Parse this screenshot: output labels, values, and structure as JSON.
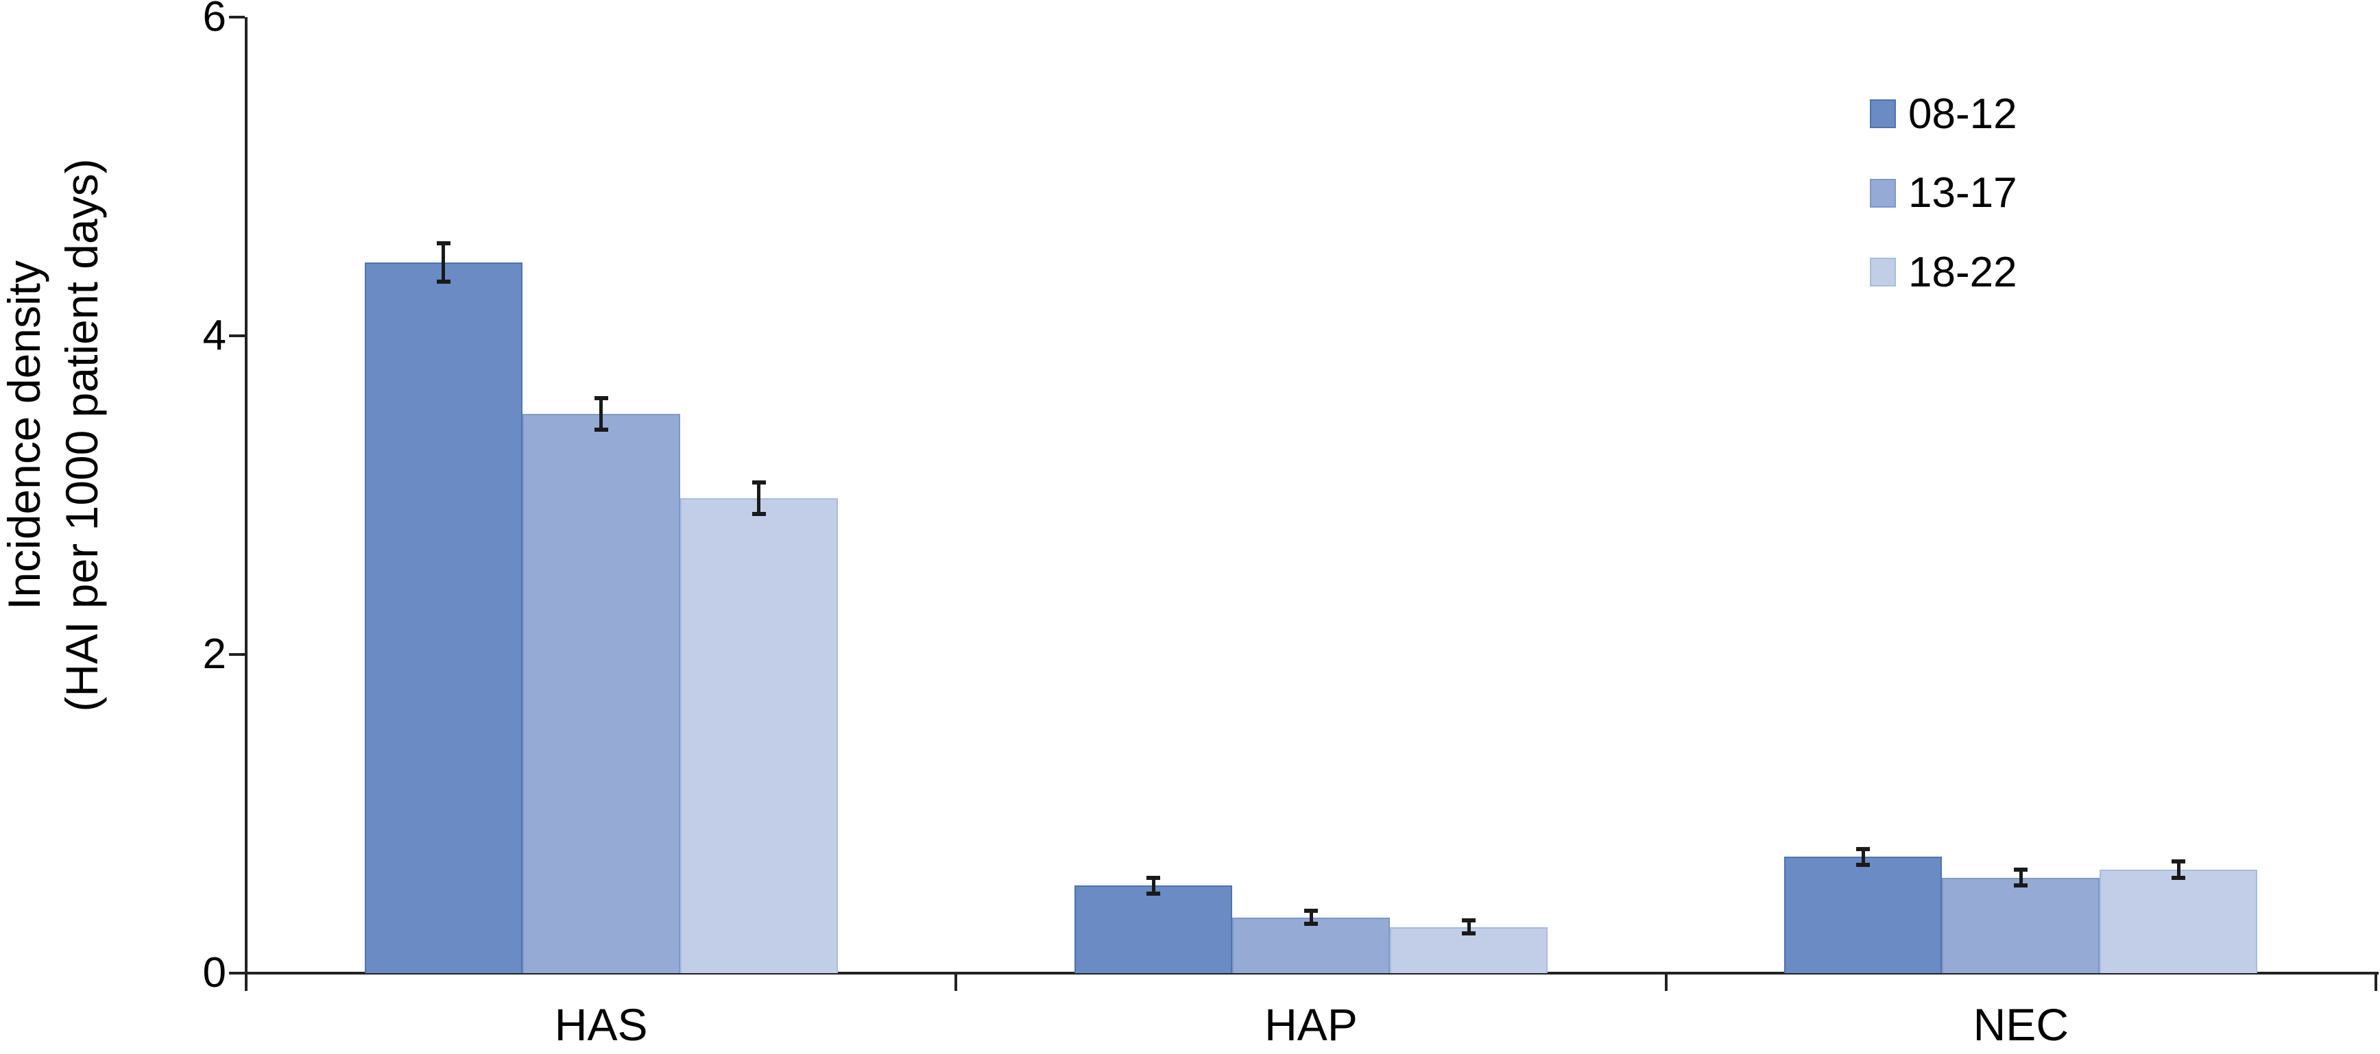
{
  "chart_data": {
    "type": "bar",
    "title": "",
    "ylabel_line1": "Incidence density",
    "ylabel_line2": "(HAI per 1000 patient days)",
    "categories": [
      "HAS",
      "HAP",
      "NEC"
    ],
    "series": [
      {
        "name": "08-12",
        "color": "#6A8BC3",
        "border_color": "#4F74AE",
        "values": [
          4.46,
          0.55,
          0.73
        ],
        "errors": [
          0.12,
          0.05,
          0.05
        ]
      },
      {
        "name": "13-17",
        "color": "#95ABD6",
        "border_color": "#7E97C8",
        "values": [
          3.51,
          0.35,
          0.6
        ],
        "errors": [
          0.1,
          0.04,
          0.05
        ]
      },
      {
        "name": "18-22",
        "color": "#C2CEE8",
        "border_color": "#A9BCDD",
        "values": [
          2.98,
          0.29,
          0.65
        ],
        "errors": [
          0.1,
          0.04,
          0.05
        ]
      }
    ],
    "ylim": [
      0,
      6
    ],
    "yticks": [
      0,
      2,
      4,
      6
    ],
    "grid": false,
    "legend_position": "top-right",
    "error_bars": true,
    "axis_color": "#222222",
    "error_bar_color": "#1a1a1a",
    "text_color": "#000000"
  }
}
